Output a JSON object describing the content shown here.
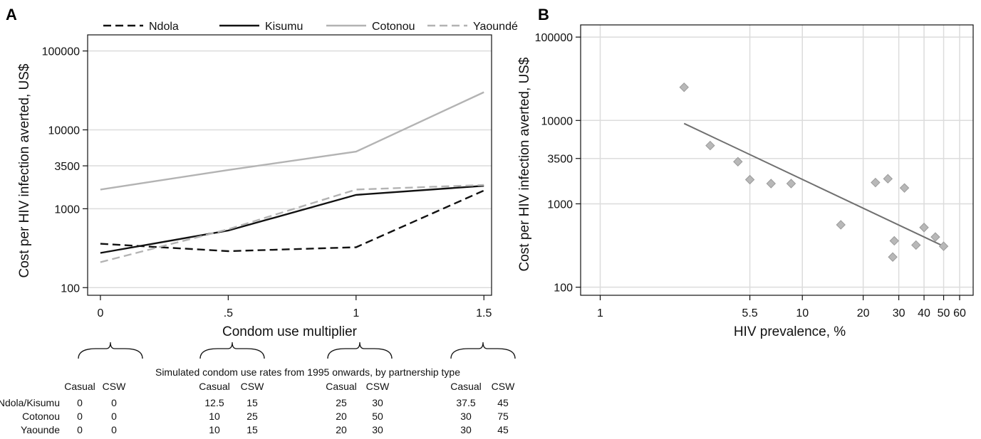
{
  "panels": {
    "a_letter": "A",
    "b_letter": "B"
  },
  "chart_data": [
    {
      "type": "line",
      "panel": "A",
      "xlabel": "Condom use multiplier",
      "ylabel": "Cost per HIV infection averted, US$",
      "y_scale": "log",
      "ylim": [
        80,
        160000
      ],
      "xlim": [
        -0.05,
        1.53
      ],
      "x_ticks": [
        {
          "value": 0,
          "label": "0"
        },
        {
          "value": 0.5,
          "label": ".5"
        },
        {
          "value": 1,
          "label": "1"
        },
        {
          "value": 1.5,
          "label": "1.5"
        }
      ],
      "y_ticks": [
        {
          "value": 100,
          "label": "100"
        },
        {
          "value": 1000,
          "label": "1000"
        },
        {
          "value": 3500,
          "label": "3500"
        },
        {
          "value": 10000,
          "label": "10000"
        },
        {
          "value": 100000,
          "label": "100000"
        }
      ],
      "grid": "horizontal",
      "legend_position": "top",
      "x": [
        0,
        0.5,
        1,
        1.5
      ],
      "series": [
        {
          "name": "Ndola",
          "values": [
            360,
            290,
            325,
            1700
          ],
          "color": "#111111",
          "dash": "dashed"
        },
        {
          "name": "Kisumu",
          "values": [
            275,
            530,
            1500,
            1950
          ],
          "color": "#111111",
          "dash": "solid"
        },
        {
          "name": "Cotonou",
          "values": [
            1750,
            3100,
            5300,
            30000
          ],
          "color": "#b3b3b3",
          "dash": "solid"
        },
        {
          "name": "Yaoundé",
          "values": [
            210,
            550,
            1750,
            2000
          ],
          "color": "#b3b3b3",
          "dash": "dashed"
        }
      ]
    },
    {
      "type": "scatter",
      "panel": "B",
      "xlabel": "HIV prevalence, %",
      "ylabel": "Cost per HIV infection averted, US$",
      "x_scale": "log",
      "y_scale": "log",
      "xlim": [
        0.8,
        70
      ],
      "ylim": [
        80,
        140000
      ],
      "x_ticks": [
        {
          "value": 1,
          "label": "1"
        },
        {
          "value": 5.5,
          "label": "5.5"
        },
        {
          "value": 10,
          "label": "10"
        },
        {
          "value": 20,
          "label": "20"
        },
        {
          "value": 30,
          "label": "30"
        },
        {
          "value": 40,
          "label": "40"
        },
        {
          "value": 50,
          "label": "50"
        },
        {
          "value": 60,
          "label": "60"
        }
      ],
      "y_ticks": [
        {
          "value": 100,
          "label": "100"
        },
        {
          "value": 1000,
          "label": "1000"
        },
        {
          "value": 3500,
          "label": "3500"
        },
        {
          "value": 10000,
          "label": "10000"
        },
        {
          "value": 100000,
          "label": "100000"
        }
      ],
      "grid": "both",
      "points": [
        {
          "x": 2.6,
          "y": 25000
        },
        {
          "x": 3.5,
          "y": 5000
        },
        {
          "x": 4.8,
          "y": 3200
        },
        {
          "x": 5.5,
          "y": 1950
        },
        {
          "x": 7.0,
          "y": 1750
        },
        {
          "x": 8.8,
          "y": 1750
        },
        {
          "x": 15.5,
          "y": 560
        },
        {
          "x": 23,
          "y": 1800
        },
        {
          "x": 26.5,
          "y": 2000
        },
        {
          "x": 28,
          "y": 230
        },
        {
          "x": 28.5,
          "y": 360
        },
        {
          "x": 32,
          "y": 1550
        },
        {
          "x": 36.5,
          "y": 320
        },
        {
          "x": 40,
          "y": 520
        },
        {
          "x": 45.5,
          "y": 400
        },
        {
          "x": 50,
          "y": 310
        }
      ],
      "fit_line": {
        "x": [
          2.6,
          50
        ],
        "y": [
          9200,
          310
        ],
        "color": "#707070"
      },
      "point_color": "#b8b8b8"
    }
  ],
  "legend": {
    "items": [
      {
        "name": "Ndola",
        "color": "#111111",
        "dash": "dashed"
      },
      {
        "name": "Kisumu",
        "color": "#111111",
        "dash": "solid"
      },
      {
        "name": "Cotonou",
        "color": "#b3b3b3",
        "dash": "solid"
      },
      {
        "name": "Yaoundé",
        "color": "#b3b3b3",
        "dash": "dashed"
      }
    ]
  },
  "table": {
    "caption": "Simulated condom use rates from 1995 onwards, by partnership type",
    "col_labels": [
      "Casual",
      "CSW"
    ],
    "rows": [
      {
        "label": "Ndola/Kisumu",
        "values": [
          "0",
          "0",
          "12.5",
          "15",
          "25",
          "30",
          "37.5",
          "45"
        ]
      },
      {
        "label": "Cotonou",
        "values": [
          "0",
          "0",
          "10",
          "25",
          "20",
          "50",
          "30",
          "75"
        ]
      },
      {
        "label": "Yaounde",
        "values": [
          "0",
          "0",
          "10",
          "15",
          "20",
          "30",
          "30",
          "45"
        ]
      }
    ]
  }
}
